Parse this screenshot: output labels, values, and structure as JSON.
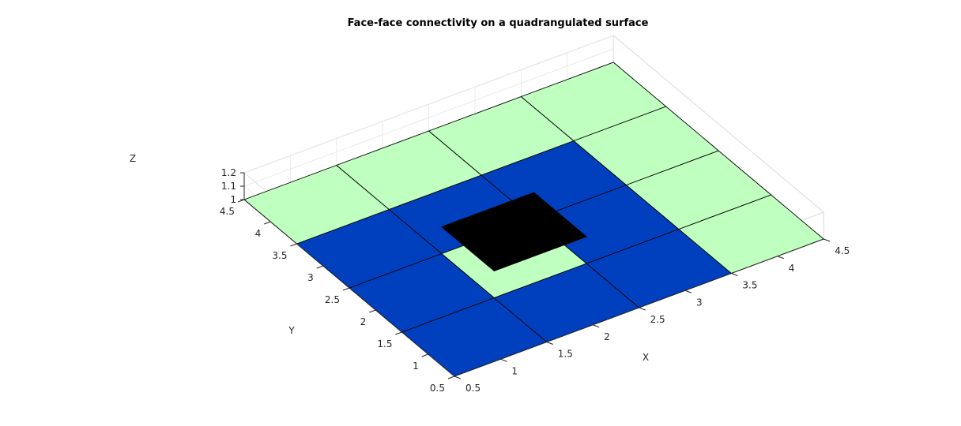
{
  "chart_data": {
    "type": "surface-3d",
    "title": "Face-face connectivity on a quadrangulated surface",
    "xlabel": "X",
    "ylabel": "Y",
    "zlabel": "Z",
    "xlim": [
      0.5,
      4.5
    ],
    "ylim": [
      0.5,
      4.5
    ],
    "zlim": [
      1,
      1.2
    ],
    "xticks": [
      "0.5",
      "1",
      "1.5",
      "2",
      "2.5",
      "3",
      "3.5",
      "4",
      "4.5"
    ],
    "yticks": [
      "0.5",
      "1",
      "1.5",
      "2",
      "2.5",
      "3",
      "3.5",
      "4",
      "4.5"
    ],
    "zticks": [
      "1",
      "1.1",
      "1.2"
    ],
    "grid": true,
    "face_states": [
      "other",
      "neighbor",
      "selected"
    ],
    "colors": {
      "other": "#bfffbf",
      "neighbor": "#0040bf",
      "selected": "#000000"
    },
    "faces": [
      {
        "x": [
          0.5,
          1.5
        ],
        "y": [
          0.5,
          1.5
        ],
        "z": 1,
        "state": "neighbor"
      },
      {
        "x": [
          1.5,
          2.5
        ],
        "y": [
          0.5,
          1.5
        ],
        "z": 1,
        "state": "neighbor"
      },
      {
        "x": [
          2.5,
          3.5
        ],
        "y": [
          0.5,
          1.5
        ],
        "z": 1,
        "state": "neighbor"
      },
      {
        "x": [
          3.5,
          4.5
        ],
        "y": [
          0.5,
          1.5
        ],
        "z": 1,
        "state": "other"
      },
      {
        "x": [
          0.5,
          1.5
        ],
        "y": [
          1.5,
          2.5
        ],
        "z": 1,
        "state": "neighbor"
      },
      {
        "x": [
          1.5,
          2.5
        ],
        "y": [
          1.5,
          2.5
        ],
        "z": 1,
        "state": "other"
      },
      {
        "x": [
          2.5,
          3.5
        ],
        "y": [
          1.5,
          2.5
        ],
        "z": 1,
        "state": "neighbor"
      },
      {
        "x": [
          3.5,
          4.5
        ],
        "y": [
          1.5,
          2.5
        ],
        "z": 1,
        "state": "other"
      },
      {
        "x": [
          0.5,
          1.5
        ],
        "y": [
          2.5,
          3.5
        ],
        "z": 1,
        "state": "neighbor"
      },
      {
        "x": [
          1.5,
          2.5
        ],
        "y": [
          2.5,
          3.5
        ],
        "z": 1,
        "state": "neighbor"
      },
      {
        "x": [
          2.5,
          3.5
        ],
        "y": [
          2.5,
          3.5
        ],
        "z": 1,
        "state": "neighbor"
      },
      {
        "x": [
          3.5,
          4.5
        ],
        "y": [
          2.5,
          3.5
        ],
        "z": 1,
        "state": "other"
      },
      {
        "x": [
          0.5,
          1.5
        ],
        "y": [
          3.5,
          4.5
        ],
        "z": 1,
        "state": "other"
      },
      {
        "x": [
          1.5,
          2.5
        ],
        "y": [
          3.5,
          4.5
        ],
        "z": 1,
        "state": "other"
      },
      {
        "x": [
          2.5,
          3.5
        ],
        "y": [
          3.5,
          4.5
        ],
        "z": 1,
        "state": "other"
      },
      {
        "x": [
          3.5,
          4.5
        ],
        "y": [
          3.5,
          4.5
        ],
        "z": 1,
        "state": "other"
      },
      {
        "x": [
          1.5,
          2.5
        ],
        "y": [
          1.5,
          2.5
        ],
        "z": 1.2,
        "state": "selected"
      }
    ]
  }
}
